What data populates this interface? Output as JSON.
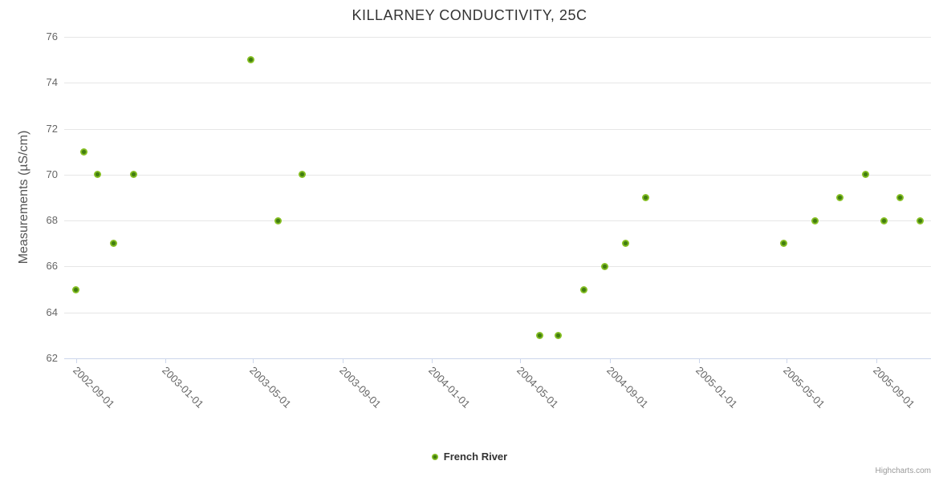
{
  "title": "KILLARNEY CONDUCTIVITY, 25C",
  "y_axis_title": "Measurements (µS/cm)",
  "legend": {
    "label": "French River"
  },
  "credits": "Highcharts.com",
  "colors": {
    "marker_outer": "#87c024",
    "marker_center": "#417d10",
    "grid": "#e6e6e6",
    "axis": "#ccd6eb",
    "title_text": "#333333",
    "label_text": "#666666"
  },
  "chart_data": {
    "type": "scatter",
    "title": "KILLARNEY CONDUCTIVITY, 25C",
    "xlabel": "",
    "ylabel": "Measurements (µS/cm)",
    "ylim": [
      62,
      76
    ],
    "y_ticks": [
      62,
      64,
      66,
      68,
      70,
      72,
      74,
      76
    ],
    "x_ticks": [
      "2002-09-01",
      "2003-01-01",
      "2003-05-01",
      "2003-09-01",
      "2004-01-01",
      "2004-05-01",
      "2004-09-01",
      "2005-01-01",
      "2005-05-01",
      "2005-09-01"
    ],
    "x_range": [
      "2002-08-16",
      "2005-11-15"
    ],
    "grid": "horizontal",
    "legend_position": "bottom",
    "series": [
      {
        "name": "French River",
        "color": "#87c024",
        "points": [
          [
            "2002-09-01",
            65
          ],
          [
            "2002-09-12",
            71
          ],
          [
            "2002-10-01",
            70
          ],
          [
            "2002-10-23",
            67
          ],
          [
            "2002-11-19",
            70
          ],
          [
            "2003-04-29",
            75
          ],
          [
            "2003-06-05",
            68
          ],
          [
            "2003-07-08",
            70
          ],
          [
            "2004-05-28",
            63
          ],
          [
            "2004-06-23",
            63
          ],
          [
            "2004-07-28",
            65
          ],
          [
            "2004-08-25",
            66
          ],
          [
            "2004-09-23",
            67
          ],
          [
            "2004-10-20",
            69
          ],
          [
            "2005-04-27",
            67
          ],
          [
            "2005-06-09",
            68
          ],
          [
            "2005-07-13",
            69
          ],
          [
            "2005-08-17",
            70
          ],
          [
            "2005-09-12",
            68
          ],
          [
            "2005-10-04",
            69
          ],
          [
            "2005-10-31",
            68
          ]
        ]
      }
    ]
  }
}
